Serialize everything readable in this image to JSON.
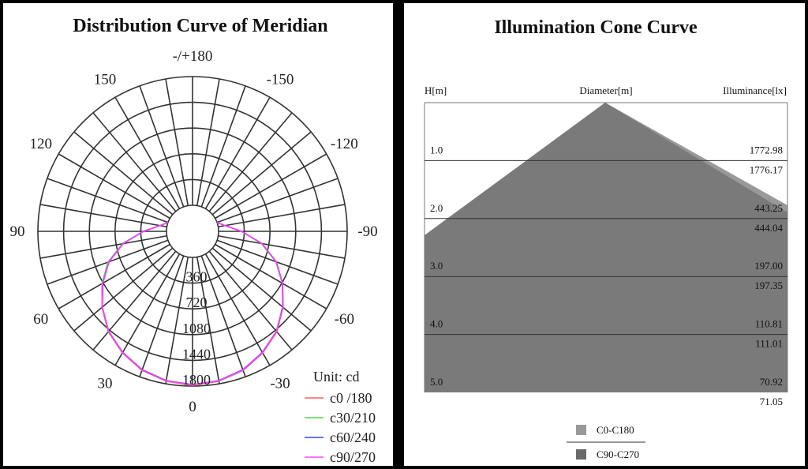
{
  "polar": {
    "title": "Distribution Curve of  Meridian",
    "unit_label": "Unit: cd"
  },
  "cone": {
    "title": "Illumination Cone Curve",
    "header_h": "H[m]",
    "header_d": "Diameter[m]",
    "header_e": "Illuminance[lx]"
  },
  "chart_data": [
    {
      "type": "polar",
      "title": "Distribution Curve of  Meridian",
      "unit": "Unit: cd",
      "angle_labels": [
        "-/+180",
        "150",
        "120",
        "90",
        "60",
        "30",
        "0",
        "-30",
        "-60",
        "-90",
        "-120",
        "-150"
      ],
      "angle_label_values": [
        180,
        150,
        120,
        90,
        60,
        30,
        0,
        -30,
        -60,
        -90,
        -120,
        -150
      ],
      "radial_labels": [
        "360",
        "720",
        "1080",
        "1440",
        "1800"
      ],
      "radial_values": [
        360,
        720,
        1080,
        1440,
        1800
      ],
      "rmax": 1800,
      "angle_step": 10,
      "series": [
        {
          "name": "c0 /180",
          "color": "#ff6060",
          "angles": [
            0,
            10,
            20,
            30,
            40,
            50,
            60,
            70,
            80,
            90,
            100,
            110,
            -10,
            -20,
            -30,
            -40,
            -50,
            -60,
            -70,
            -80,
            -90,
            -100,
            -110
          ],
          "values": [
            1790,
            1764,
            1705,
            1600,
            1470,
            1290,
            1090,
            880,
            620,
            320,
            100,
            0,
            1764,
            1705,
            1600,
            1470,
            1290,
            1090,
            880,
            620,
            320,
            100,
            0
          ]
        },
        {
          "name": "c30/210",
          "color": "#40dd40",
          "angles": [
            0,
            10,
            20,
            30,
            40,
            50,
            60,
            70,
            80,
            90,
            100,
            110,
            -10,
            -20,
            -30,
            -40,
            -50,
            -60,
            -70,
            -80,
            -90,
            -100,
            -110
          ],
          "values": [
            1785,
            1760,
            1700,
            1595,
            1465,
            1288,
            1100,
            895,
            630,
            325,
            100,
            0,
            1760,
            1700,
            1590,
            1460,
            1280,
            1085,
            875,
            615,
            318,
            100,
            0
          ]
        },
        {
          "name": "c60/240",
          "color": "#4040ee",
          "angles": [
            0,
            10,
            20,
            30,
            40,
            50,
            60,
            70,
            80,
            90,
            100,
            110,
            -10,
            -20,
            -30,
            -40,
            -50,
            -60,
            -70,
            -80,
            -90,
            -100,
            -110
          ],
          "values": [
            1780,
            1755,
            1695,
            1590,
            1460,
            1285,
            1085,
            880,
            625,
            322,
            100,
            0,
            1755,
            1695,
            1590,
            1462,
            1285,
            1090,
            885,
            625,
            325,
            100,
            0
          ]
        },
        {
          "name": "c90/270",
          "color": "#ff40ff",
          "angles": [
            0,
            10,
            20,
            30,
            40,
            50,
            60,
            70,
            80,
            90,
            100,
            110,
            -10,
            -20,
            -30,
            -40,
            -50,
            -60,
            -70,
            -80,
            -90,
            -100,
            -110
          ],
          "values": [
            1782,
            1758,
            1700,
            1595,
            1462,
            1286,
            1088,
            882,
            622,
            320,
            100,
            0,
            1758,
            1700,
            1595,
            1462,
            1286,
            1088,
            882,
            622,
            320,
            100,
            0
          ]
        }
      ]
    },
    {
      "type": "area",
      "title": "Illumination Cone Curve",
      "xlabel": "Diameter[m]",
      "ylabel": "H[m]",
      "value_label": "Illuminance[lx]",
      "rows": [
        {
          "h": "1.0",
          "e1": "1772.98",
          "e2": "1776.17"
        },
        {
          "h": "2.0",
          "e1": "443.25",
          "e2": "444.04"
        },
        {
          "h": "3.0",
          "e1": "197.00",
          "e2": "197.35"
        },
        {
          "h": "4.0",
          "e1": "110.81",
          "e2": "111.01"
        },
        {
          "h": "5.0",
          "e1": "70.92",
          "e2": "71.05"
        }
      ],
      "series": [
        {
          "name": "C0-C180",
          "color": "#999999"
        },
        {
          "name": "C90-C270",
          "color": "#7a7a7a"
        }
      ]
    }
  ]
}
